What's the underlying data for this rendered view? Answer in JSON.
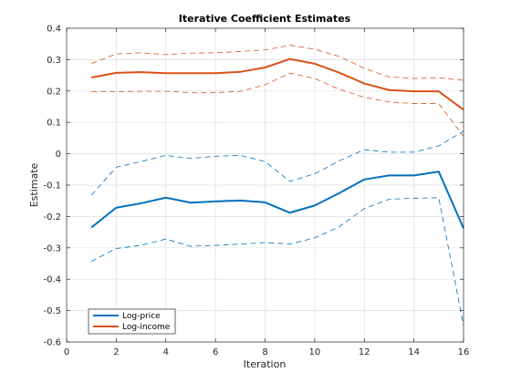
{
  "chart_data": {
    "type": "line",
    "title": "Iterative Coefficient Estimates",
    "xlabel": "Iteration",
    "ylabel": "Estimate",
    "xlim": [
      0,
      16
    ],
    "ylim": [
      -0.6,
      0.4
    ],
    "xticks": [
      0,
      2,
      4,
      6,
      8,
      10,
      12,
      14,
      16
    ],
    "yticks": [
      -0.6,
      -0.5,
      -0.4,
      -0.3,
      -0.2,
      -0.1,
      0,
      0.1,
      0.2,
      0.3,
      0.4
    ],
    "xtick_labels": [
      "0",
      "2",
      "4",
      "6",
      "8",
      "10",
      "12",
      "14",
      "16"
    ],
    "ytick_labels": [
      "-0.6",
      "-0.5",
      "-0.4",
      "-0.3",
      "-0.2",
      "-0.1",
      "0",
      "0.1",
      "0.2",
      "0.3",
      "0.4"
    ],
    "grid": true,
    "legend_position": "bottom-left",
    "x": [
      1,
      2,
      3,
      4,
      5,
      6,
      7,
      8,
      9,
      10,
      11,
      12,
      13,
      14,
      15,
      16
    ],
    "series": [
      {
        "name": "Log-price",
        "color": "#0072BD",
        "style": "solid",
        "values": [
          -0.235,
          -0.172,
          -0.158,
          -0.14,
          -0.156,
          -0.152,
          -0.149,
          -0.155,
          -0.188,
          -0.165,
          -0.125,
          -0.082,
          -0.069,
          -0.069,
          -0.057,
          -0.238
        ]
      },
      {
        "name": "Log-income",
        "color": "#D95319",
        "style": "solid",
        "values": [
          0.243,
          0.258,
          0.26,
          0.257,
          0.257,
          0.257,
          0.261,
          0.275,
          0.302,
          0.287,
          0.258,
          0.224,
          0.203,
          0.199,
          0.199,
          0.14
        ]
      },
      {
        "color": "#0072BD",
        "style": "dashed",
        "values": [
          -0.132,
          -0.043,
          -0.025,
          -0.005,
          -0.015,
          -0.008,
          -0.005,
          -0.025,
          -0.088,
          -0.064,
          -0.022,
          0.013,
          0.005,
          0.005,
          0.025,
          0.072
        ]
      },
      {
        "color": "#0072BD",
        "style": "dashed",
        "values": [
          -0.343,
          -0.302,
          -0.292,
          -0.272,
          -0.295,
          -0.292,
          -0.288,
          -0.283,
          -0.288,
          -0.268,
          -0.232,
          -0.175,
          -0.145,
          -0.142,
          -0.14,
          -0.548
        ]
      },
      {
        "color": "#D95319",
        "style": "dashed",
        "values": [
          0.288,
          0.318,
          0.322,
          0.316,
          0.321,
          0.322,
          0.326,
          0.331,
          0.346,
          0.333,
          0.31,
          0.272,
          0.245,
          0.24,
          0.242,
          0.234
        ]
      },
      {
        "color": "#D95319",
        "style": "dashed",
        "values": [
          0.198,
          0.198,
          0.199,
          0.199,
          0.195,
          0.195,
          0.199,
          0.22,
          0.257,
          0.24,
          0.205,
          0.18,
          0.165,
          0.16,
          0.16,
          0.055
        ]
      }
    ]
  }
}
